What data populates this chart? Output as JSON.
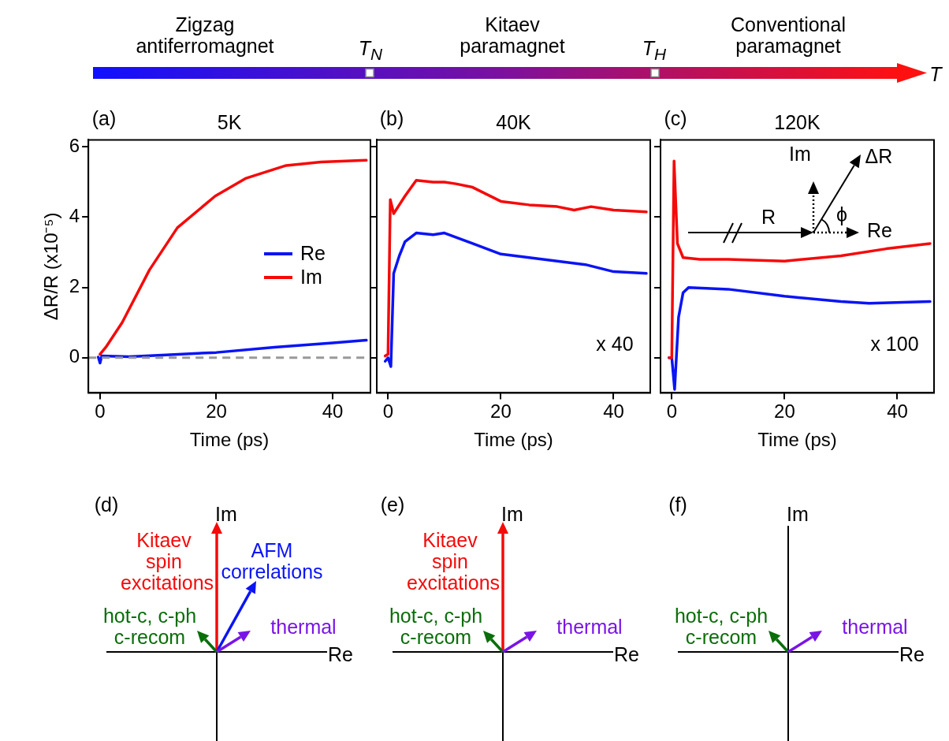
{
  "chart_data": [
    {
      "type": "other",
      "annotations": [
        "Zigzag antiferromagnet",
        "T$_{N}$",
        "Kitaev paramagnet",
        "T$_{H}$",
        "Conventional paramagnet",
        "T"
      ]
    },
    {
      "type": "line",
      "title": "5K",
      "xlabel": "Time (ps)",
      "ylabel": "ΔR/R (x10⁻⁵)",
      "xlim": [
        -2,
        46.5
      ],
      "ylim": [
        -1.0,
        6.2
      ],
      "xticks": [
        0,
        20,
        40
      ],
      "yticks": [
        0,
        2,
        4,
        6
      ],
      "grid": false,
      "legend": "right",
      "marker": "none",
      "line_style": "solid",
      "annotations": [
        "(a)"
      ],
      "ref_lines": [
        {
          "axis": "y",
          "value": 0,
          "color": "#999999",
          "line_style": "dashed"
        }
      ],
      "series": [
        {
          "name": "Re",
          "color": "#0a14f5",
          "x": [
            -0.3,
            0,
            0.3,
            5,
            10,
            20,
            30,
            40,
            45.8
          ],
          "values": [
            0.02,
            -0.15,
            0.05,
            0.03,
            0.07,
            0.15,
            0.3,
            0.42,
            0.5
          ]
        },
        {
          "name": "Im",
          "color": "#f50a0a",
          "x": [
            0,
            1,
            3.8,
            8.5,
            13.3,
            19.8,
            25,
            32,
            38,
            45.8
          ],
          "values": [
            0.1,
            0.3,
            1.0,
            2.5,
            3.7,
            4.6,
            5.1,
            5.47,
            5.57,
            5.62
          ]
        }
      ]
    },
    {
      "type": "line",
      "title": "40K",
      "xlabel": "Time (ps)",
      "xlim": [
        -2,
        46.5
      ],
      "ylim": [
        -1.0,
        6.2
      ],
      "xticks": [
        0,
        20,
        40
      ],
      "yticks": [
        0,
        2,
        4,
        6
      ],
      "grid": false,
      "tick_labels": "x",
      "marker": "none",
      "line_style": "solid",
      "annotations": [
        "(b)",
        "x 40"
      ],
      "series": [
        {
          "color": "#f50a0a",
          "x": [
            -0.5,
            0,
            0.4,
            1,
            3,
            5,
            8,
            10,
            12,
            15,
            20,
            25,
            30,
            33,
            36,
            40,
            45.8
          ],
          "values": [
            0.05,
            0.1,
            4.5,
            4.1,
            4.6,
            5.05,
            5.0,
            5.0,
            4.95,
            4.85,
            4.45,
            4.35,
            4.3,
            4.2,
            4.3,
            4.2,
            4.15
          ]
        },
        {
          "color": "#0a14f5",
          "x": [
            -0.5,
            0,
            0.5,
            1,
            2,
            3,
            5,
            8,
            10,
            15,
            20,
            25,
            30,
            35,
            40,
            45.8
          ],
          "values": [
            -0.1,
            0,
            -0.25,
            2.4,
            2.9,
            3.3,
            3.55,
            3.5,
            3.55,
            3.25,
            2.95,
            2.85,
            2.75,
            2.65,
            2.45,
            2.4
          ]
        }
      ]
    },
    {
      "type": "line",
      "title": "120K",
      "xlabel": "Time (ps)",
      "xlim": [
        -2,
        46.5
      ],
      "ylim": [
        -1.0,
        6.2
      ],
      "xticks": [
        0,
        20,
        40
      ],
      "yticks": [
        0,
        2,
        4,
        6
      ],
      "grid": false,
      "tick_labels": "x",
      "marker": "none",
      "line_style": "solid",
      "annotations": [
        "(c)",
        "x 100",
        "Im",
        "ΔR",
        "R",
        "ϕ",
        "Re"
      ],
      "series": [
        {
          "color": "#f50a0a",
          "x": [
            -0.5,
            0,
            0.4,
            1,
            2,
            5,
            10,
            20,
            30,
            38,
            45.8
          ],
          "values": [
            0,
            0,
            5.6,
            3.25,
            2.85,
            2.8,
            2.8,
            2.75,
            2.9,
            3.1,
            3.25
          ]
        },
        {
          "color": "#0a14f5",
          "x": [
            -0.5,
            0,
            0.5,
            1.2,
            2,
            3,
            10,
            20,
            30,
            35,
            45.8
          ],
          "values": [
            0,
            0,
            -0.9,
            1.15,
            1.85,
            2.0,
            1.95,
            1.75,
            1.6,
            1.55,
            1.6
          ]
        }
      ]
    },
    {
      "type": "other",
      "annotations": [
        "(d)",
        "Im",
        "Re",
        "Kitaev spin excitations",
        "hot-c, c-ph c-recom",
        "thermal",
        "AFM correlations"
      ]
    },
    {
      "type": "other",
      "annotations": [
        "(e)",
        "Im",
        "Re",
        "Kitaev spin excitations",
        "hot-c, c-ph c-recom",
        "thermal"
      ]
    },
    {
      "type": "other",
      "annotations": [
        "(f)",
        "Im",
        "Re",
        "hot-c, c-ph c-recom",
        "thermal"
      ]
    }
  ]
}
